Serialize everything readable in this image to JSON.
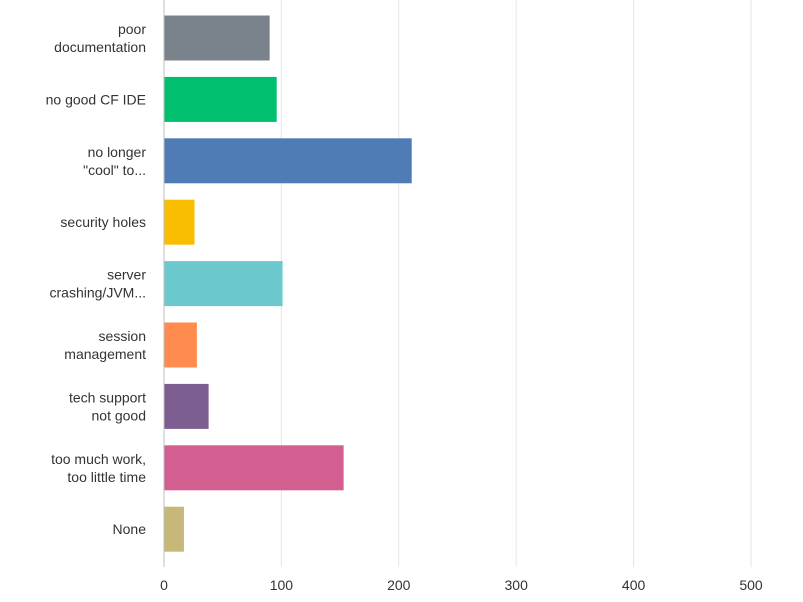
{
  "chart_data": {
    "type": "bar",
    "orientation": "horizontal",
    "categories": [
      [
        "poor",
        "documentation"
      ],
      [
        "no good CF IDE"
      ],
      [
        "no longer",
        "\"cool\" to..."
      ],
      [
        "security holes"
      ],
      [
        "server",
        "crashing/JVM..."
      ],
      [
        "session",
        "management"
      ],
      [
        "tech support",
        "not good"
      ],
      [
        "too much work,",
        "too little time"
      ],
      [
        "None"
      ]
    ],
    "values": [
      90,
      96,
      211,
      26,
      101,
      28,
      38,
      153,
      17
    ],
    "colors": [
      "#7a838c",
      "#00bf6f",
      "#507cb6",
      "#f9be00",
      "#6bc8cd",
      "#ff8b4f",
      "#7d5e90",
      "#d25f90",
      "#c7b879"
    ],
    "xlim": [
      0,
      500
    ],
    "xticks": [
      0,
      100,
      200,
      300,
      400,
      500
    ],
    "grid": true,
    "legend": "none",
    "title": "",
    "xlabel": "",
    "ylabel": ""
  }
}
